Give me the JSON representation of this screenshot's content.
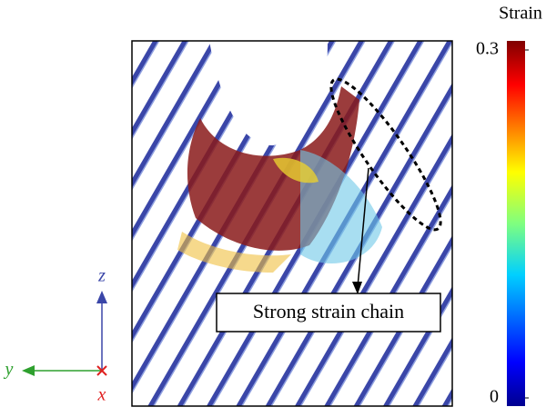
{
  "colorbar": {
    "title": "Strain",
    "lim": [
      0,
      0.3
    ],
    "ticks": [
      0,
      0.3
    ]
  },
  "annotation": "Strong strain chain",
  "axes": {
    "z": "z",
    "y": "y",
    "x": "x"
  }
}
